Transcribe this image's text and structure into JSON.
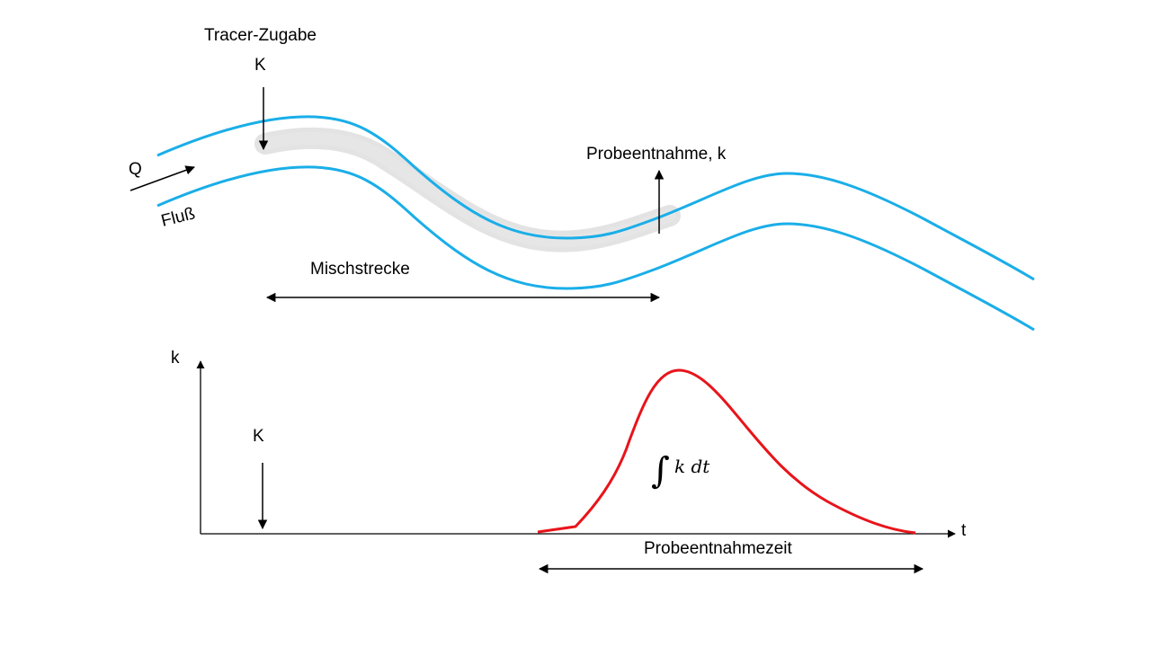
{
  "labels": {
    "tracer": "Tracer-Zugabe",
    "k_top": "K",
    "q": "Q",
    "fluss": "Fluß",
    "probe": "Probeentnahme, k",
    "misch": "Mischstrecke",
    "k_axis": "k",
    "k_lower": "K",
    "t_axis": "t",
    "probezeit": "Probeentnahmezeit",
    "integral_symbol": "∫",
    "integral_expr": "k dt"
  },
  "colors": {
    "river": "#1aaee8",
    "curve": "#e8141b",
    "plume": "#d9d9d9",
    "ink": "#000000"
  }
}
